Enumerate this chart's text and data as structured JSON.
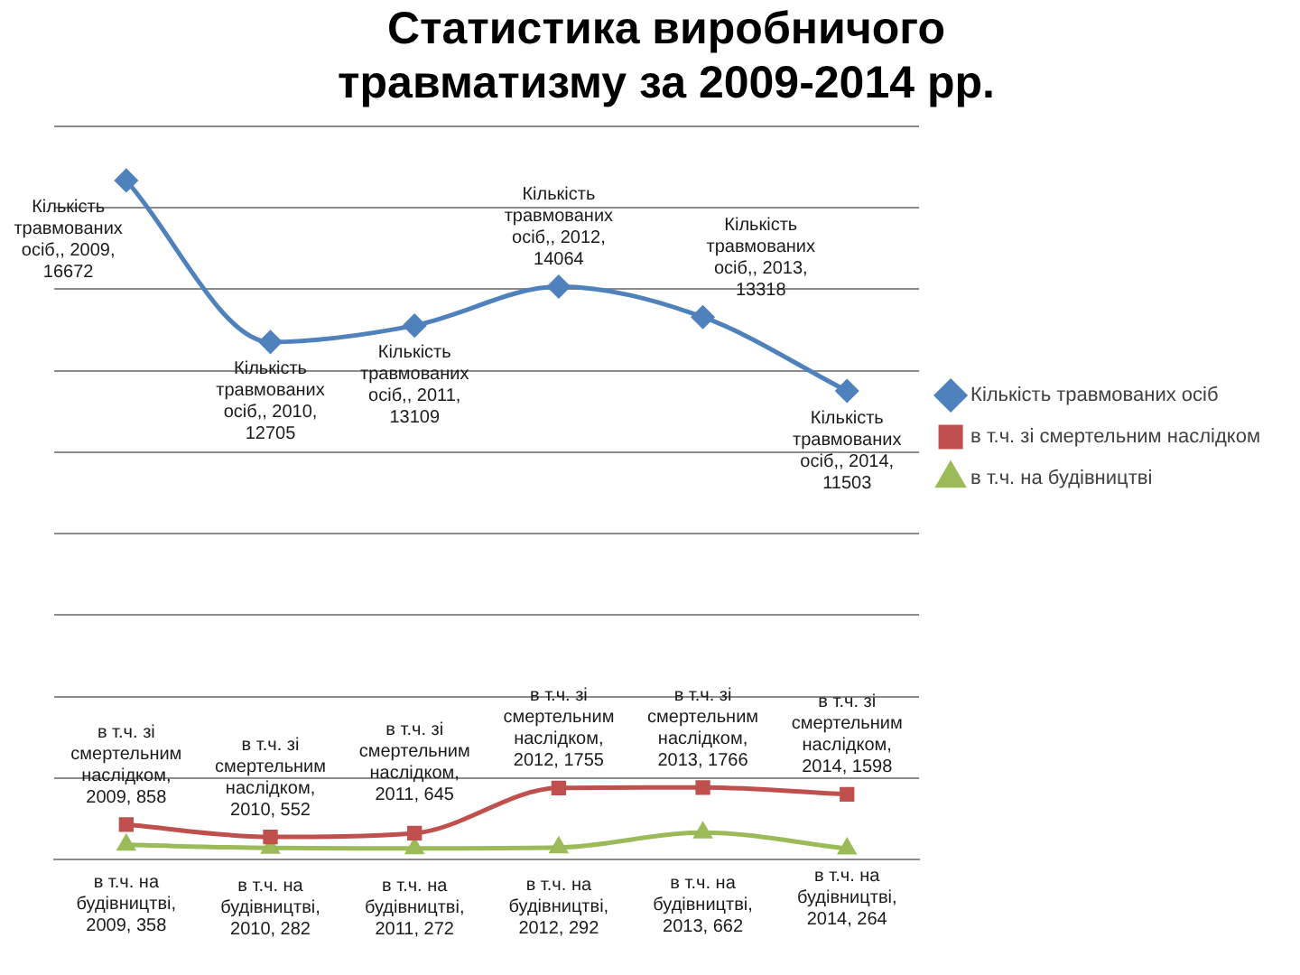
{
  "chart_data": {
    "type": "line",
    "title": "Статистика виробничого травматизму за 2009-2014 рр.",
    "categories": [
      null,
      null,
      null,
      null,
      null,
      null
    ],
    "series": [
      {
        "name": "Кількість травмованих осіб",
        "color": "#4f81bd",
        "marker": "diamond",
        "values": [
          16672,
          12705,
          13109,
          14064,
          13318,
          11503
        ],
        "value_labels": [
          "Кількість травмованих осіб,, 2009, 16672",
          "Кількість травмованих осіб,, 2010, 12705",
          "Кількість травмованих осіб,, 2011, 13109",
          "Кількість травмованих осіб,, 2012, 14064",
          "Кількість травмованих осіб,, 2013, 13318",
          "Кількість травмованих осіб,, 2014, 11503"
        ]
      },
      {
        "name": "в т.ч. зі смертельним наслідком",
        "color": "#c0504d",
        "marker": "square",
        "values": [
          858,
          552,
          645,
          1755,
          1766,
          1598
        ],
        "value_labels": [
          "в т.ч. зі смертельним наслідком, 2009, 858",
          "в т.ч. зі смертельним наслідком, 2010, 552",
          "в т.ч. зі смертельним наслідком, 2011, 645",
          "в т.ч. зі смертельним наслідком, 2012, 1755",
          "в т.ч. зі смертельним наслідком, 2013, 1766",
          "в т.ч. зі смертельним наслідком, 2014, 1598"
        ]
      },
      {
        "name": "в т.ч. на будівництві",
        "color": "#9bbb59",
        "marker": "triangle",
        "values": [
          358,
          282,
          272,
          292,
          662,
          264
        ],
        "value_labels": [
          "в т.ч. на будівництві, 2009, 358",
          "в т.ч. на будівництві, 2010, 282",
          "в т.ч. на будівництві, 2011, 272",
          "в т.ч. на будівництві, 2012, 292",
          "в т.ч. на будівництві, 2013, 662",
          "в т.ч. на будівництві, 2014, 264"
        ]
      }
    ],
    "ylim": [
      0,
      18000
    ],
    "yticks": [
      0,
      2000,
      4000,
      6000,
      8000,
      10000,
      12000,
      14000,
      16000,
      18000
    ],
    "grid": "y",
    "legend": "right",
    "tick_labels": false
  }
}
